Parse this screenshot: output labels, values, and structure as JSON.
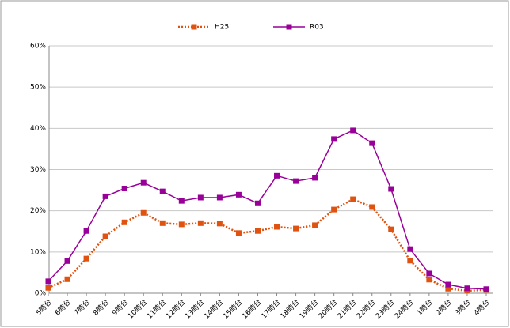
{
  "chart_data": {
    "type": "line",
    "categories": [
      "5時台",
      "6時台",
      "7時台",
      "8時台",
      "9時台",
      "10時台",
      "11時台",
      "12時台",
      "13時台",
      "14時台",
      "15時台",
      "16時台",
      "17時台",
      "18時台",
      "19時台",
      "20時台",
      "21時台",
      "22時台",
      "23時台",
      "24時台",
      "1時台",
      "2時台",
      "3時台",
      "4時台"
    ],
    "series": [
      {
        "name": "H25",
        "color": "#e0520f",
        "line_style": "dotted",
        "values": [
          1.3,
          3.4,
          8.4,
          13.8,
          17.2,
          19.5,
          17.0,
          16.7,
          17.0,
          16.9,
          14.6,
          15.1,
          16.1,
          15.7,
          16.5,
          20.3,
          22.8,
          20.9,
          15.5,
          7.9,
          3.3,
          1.1,
          0.6,
          0.8
        ]
      },
      {
        "name": "R03",
        "color": "#990099",
        "line_style": "solid",
        "values": [
          2.9,
          7.8,
          15.1,
          23.5,
          25.4,
          26.8,
          24.7,
          22.4,
          23.2,
          23.2,
          23.9,
          21.8,
          28.5,
          27.2,
          28.0,
          37.4,
          39.5,
          36.4,
          25.3,
          10.7,
          4.8,
          2.1,
          1.2,
          1.0
        ]
      }
    ],
    "ylim": [
      0,
      60
    ],
    "yticks": [
      {
        "value": 0,
        "label": "0%"
      },
      {
        "value": 10,
        "label": "10%"
      },
      {
        "value": 20,
        "label": "20%"
      },
      {
        "value": 30,
        "label": "30%"
      },
      {
        "value": 40,
        "label": "40%"
      },
      {
        "value": 50,
        "label": "50%"
      },
      {
        "value": 60,
        "label": "60%"
      }
    ],
    "grid": true,
    "legend": "top"
  }
}
